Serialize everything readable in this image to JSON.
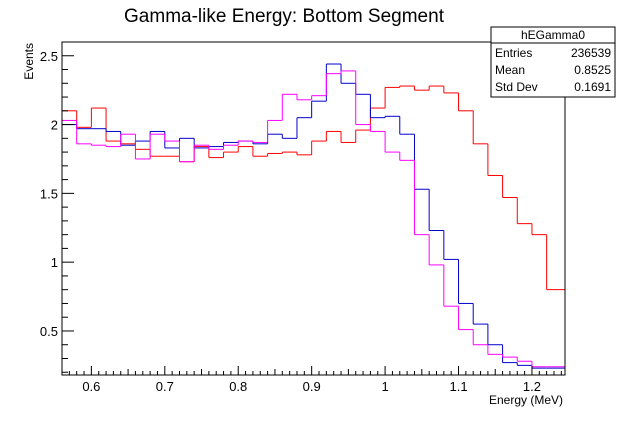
{
  "chart_data": {
    "type": "step-histogram",
    "title": "Gamma-like Energy: Bottom Segment",
    "xlabel": "Energy (MeV)",
    "ylabel": "Events",
    "xlim": [
      0.56,
      1.245
    ],
    "ylim": [
      0.18,
      2.6
    ],
    "x_ticks": [
      0.6,
      0.7,
      0.8,
      0.9,
      1.0,
      1.1,
      1.2
    ],
    "x_tick_labels": [
      "0.6",
      "0.7",
      "0.8",
      "0.9",
      "1",
      "1.1",
      "1.2"
    ],
    "y_ticks": [
      0.5,
      1.0,
      1.5,
      2.0,
      2.5
    ],
    "y_tick_labels": [
      "0.5",
      "1",
      "1.5",
      "2",
      "2.5"
    ],
    "grid": false,
    "bin_edges": [
      0.56,
      0.58,
      0.6,
      0.62,
      0.64,
      0.66,
      0.68,
      0.7,
      0.72,
      0.74,
      0.76,
      0.78,
      0.8,
      0.82,
      0.84,
      0.86,
      0.88,
      0.9,
      0.92,
      0.94,
      0.96,
      0.98,
      1.0,
      1.02,
      1.04,
      1.06,
      1.08,
      1.1,
      1.12,
      1.14,
      1.16,
      1.18,
      1.2,
      1.22,
      1.245
    ],
    "series": [
      {
        "color": "#ff0000",
        "values": [
          2.1,
          1.98,
          2.12,
          1.88,
          1.86,
          1.82,
          1.77,
          1.77,
          1.73,
          1.84,
          1.76,
          1.8,
          1.84,
          1.77,
          1.79,
          1.8,
          1.78,
          1.88,
          1.95,
          1.87,
          1.96,
          2.12,
          2.27,
          2.28,
          2.25,
          2.28,
          2.23,
          2.1,
          1.86,
          1.63,
          1.47,
          1.28,
          1.2,
          0.8
        ]
      },
      {
        "color": "#0000cc",
        "values": [
          2.0,
          1.97,
          1.97,
          1.95,
          1.85,
          1.88,
          1.95,
          1.83,
          1.9,
          1.83,
          1.84,
          1.87,
          1.88,
          1.86,
          1.93,
          1.9,
          2.05,
          2.17,
          2.44,
          2.3,
          2.22,
          2.05,
          2.06,
          1.93,
          1.53,
          1.23,
          1.02,
          0.7,
          0.55,
          0.4,
          0.27,
          0.25,
          0.23,
          0.23
        ]
      },
      {
        "color": "#ff00ff",
        "values": [
          2.03,
          1.86,
          1.85,
          1.84,
          1.93,
          1.75,
          1.93,
          1.88,
          1.73,
          1.85,
          1.82,
          1.85,
          1.88,
          1.87,
          2.03,
          2.22,
          2.18,
          2.21,
          2.37,
          2.39,
          2.0,
          1.95,
          1.8,
          1.74,
          1.2,
          0.98,
          0.68,
          0.51,
          0.4,
          0.33,
          0.31,
          0.28,
          0.24,
          0.24
        ]
      }
    ],
    "stats_box": {
      "name": "hEGamma0",
      "rows": [
        {
          "label": "Entries",
          "value": "236539"
        },
        {
          "label": "Mean",
          "value": "0.8525"
        },
        {
          "label": "Std Dev",
          "value": "0.1691"
        }
      ]
    }
  }
}
